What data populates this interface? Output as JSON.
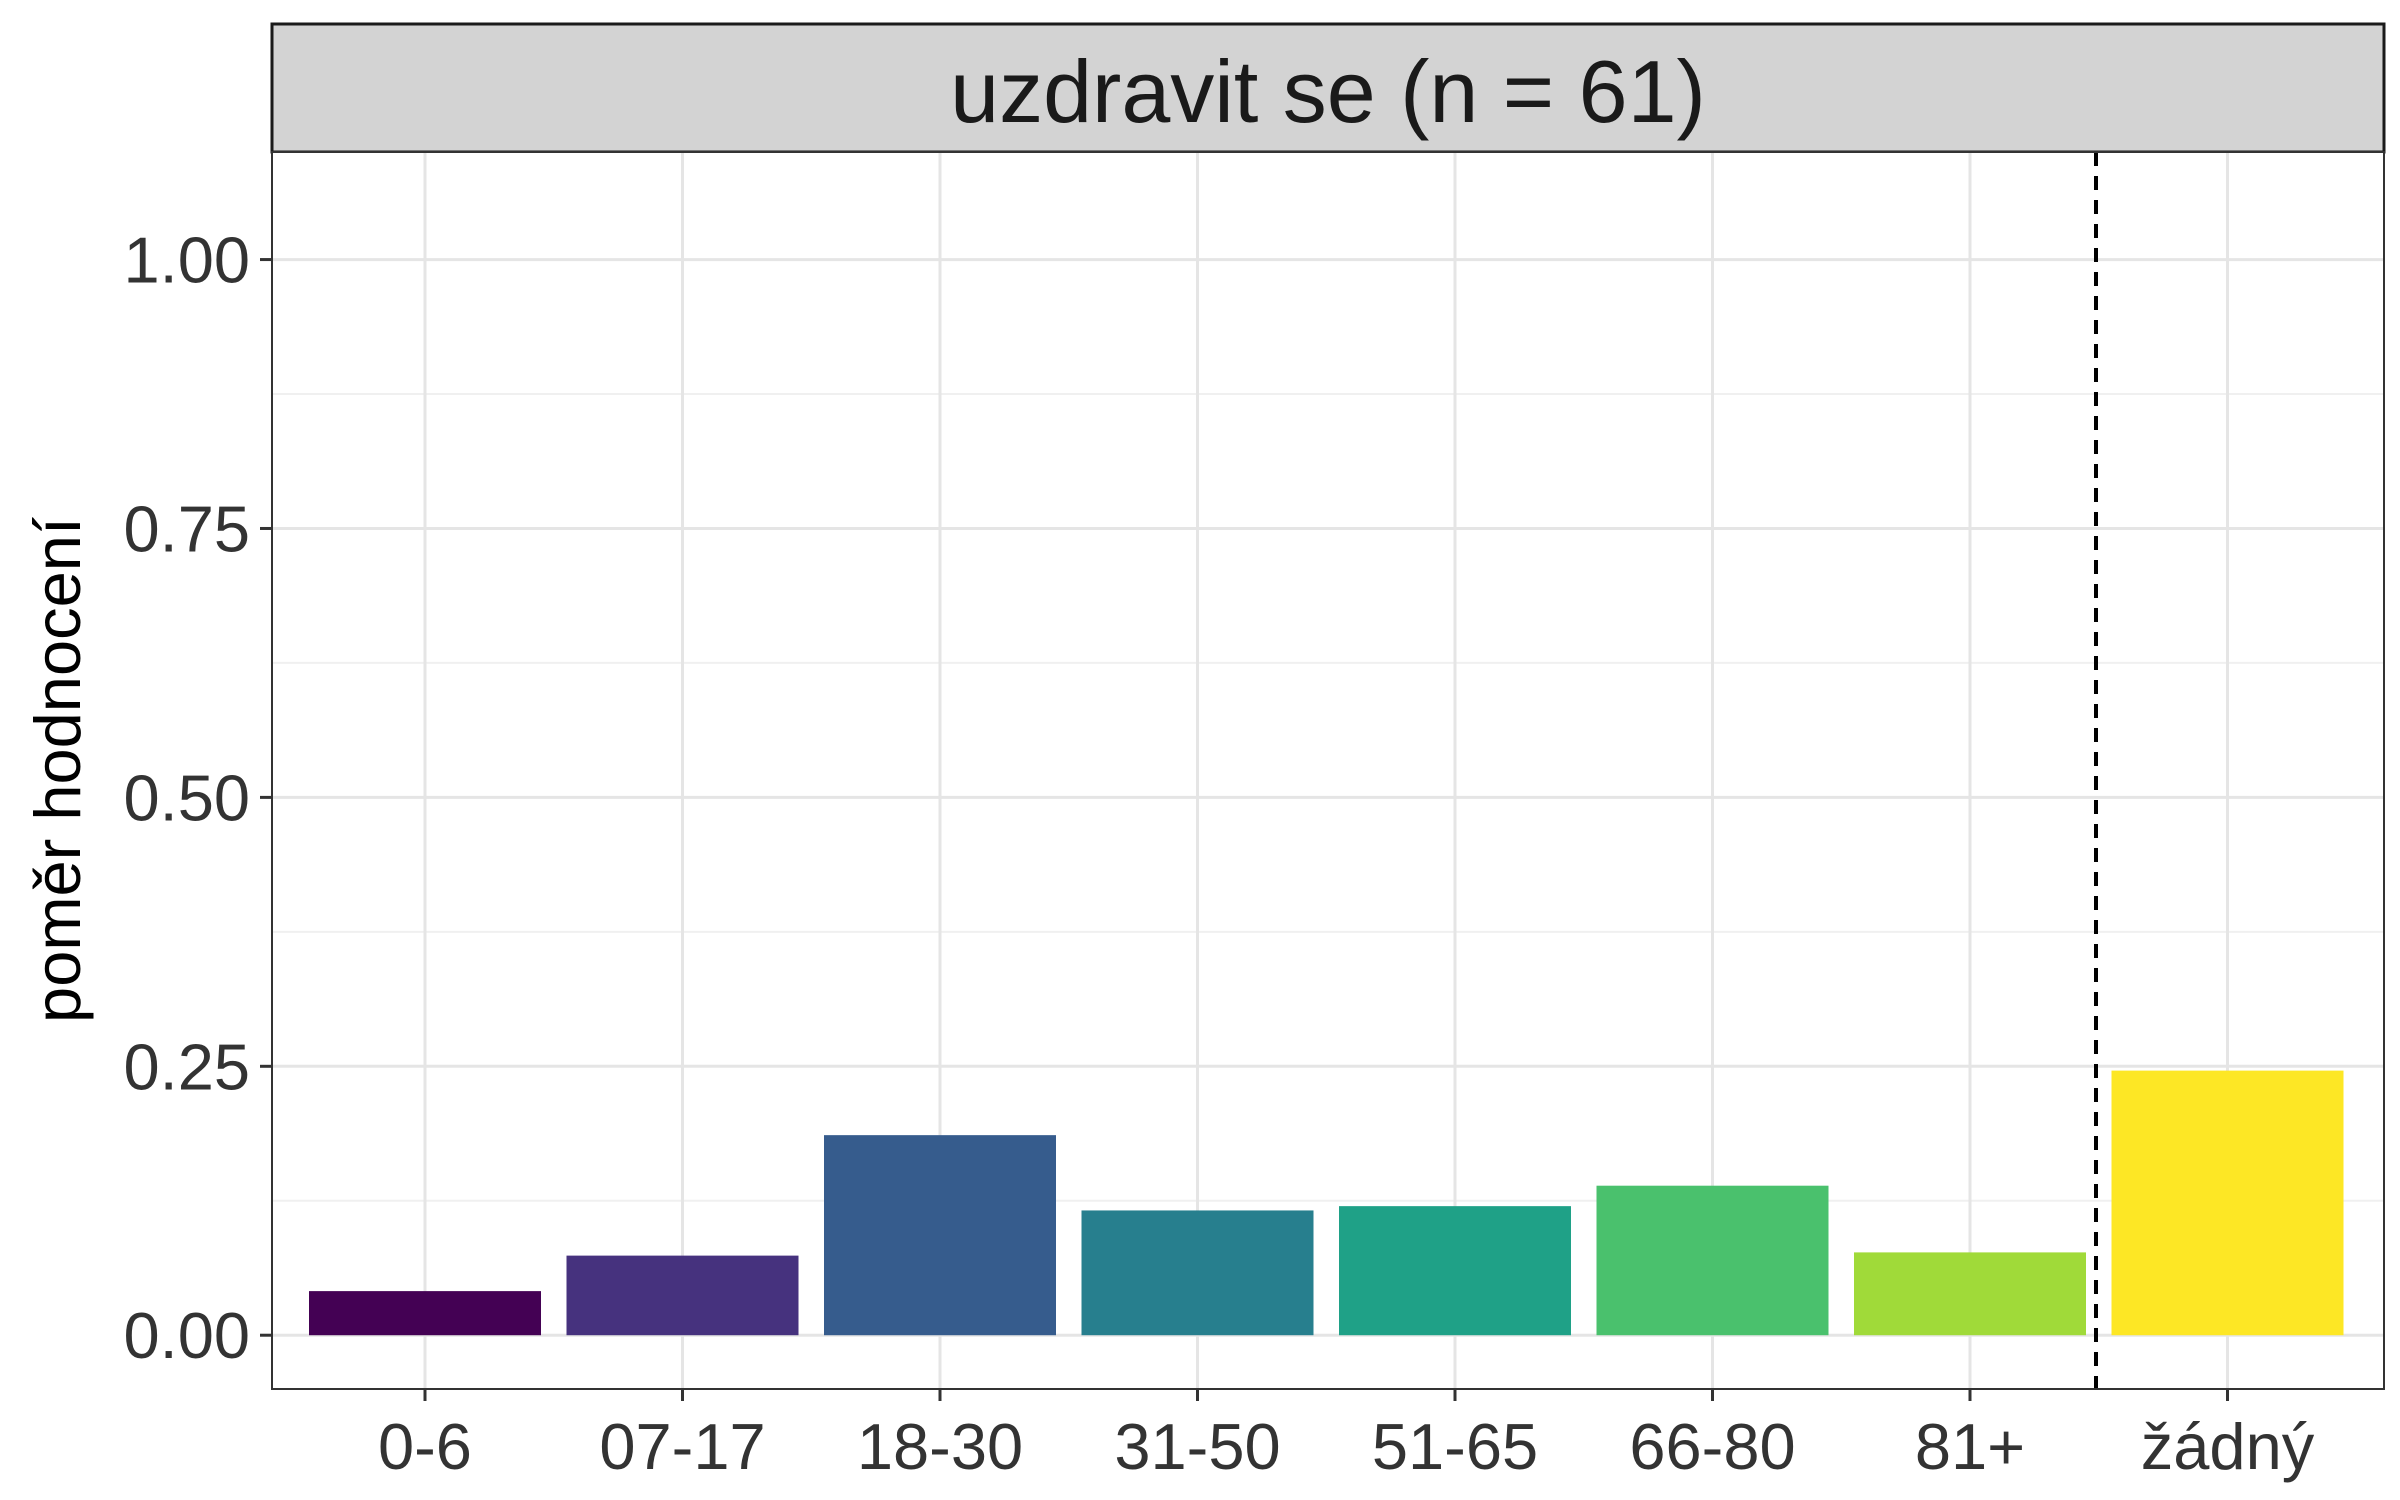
{
  "chart_data": {
    "type": "bar",
    "title": "uzdravit se (n = 61)",
    "xlabel": "",
    "ylabel": "poměr hodnocení",
    "categories": [
      "0-6",
      "07-17",
      "18-30",
      "31-50",
      "51-65",
      "66-80",
      "81+",
      "žádný"
    ],
    "values": [
      0.041,
      0.074,
      0.186,
      0.116,
      0.12,
      0.139,
      0.077,
      0.246
    ],
    "colors": [
      "#440154",
      "#46327e",
      "#365c8d",
      "#277f8e",
      "#1fa187",
      "#4ac16d",
      "#a0da39",
      "#fde725"
    ],
    "ylim": [
      -0.05,
      1.1
    ],
    "yticks": [
      "0.00",
      "0.25",
      "0.50",
      "0.75",
      "1.00"
    ],
    "ytick_values": [
      0,
      0.25,
      0.5,
      0.75,
      1.0
    ],
    "separator": "dashed vertical line between 81+ and žádný",
    "grid": true,
    "legend": "none"
  }
}
